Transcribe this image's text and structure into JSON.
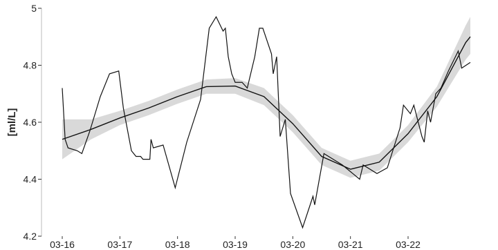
{
  "chart_data": {
    "type": "line",
    "y_label": "[ml/L]",
    "xlim": [
      15.64,
      23.32
    ],
    "ylim": [
      4.2,
      5.0
    ],
    "yticks": [
      {
        "value": 4.2,
        "label": "4.2"
      },
      {
        "value": 4.4,
        "label": "4.4"
      },
      {
        "value": 4.6,
        "label": "4.6"
      },
      {
        "value": 4.8,
        "label": "4.8"
      },
      {
        "value": 5,
        "label": "5"
      }
    ],
    "xticks": [
      {
        "value": 16,
        "label": "03-16"
      },
      {
        "value": 17,
        "label": "03-17"
      },
      {
        "value": 18,
        "label": "03-18"
      },
      {
        "value": 19,
        "label": "03-19"
      },
      {
        "value": 20,
        "label": "03-20"
      },
      {
        "value": 21,
        "label": "03-21"
      },
      {
        "value": 22,
        "label": "03-22"
      }
    ],
    "grid": false,
    "color": "#111111",
    "band_color": "#d9d9d9",
    "x": [
      16.0,
      16.05,
      16.1,
      16.26,
      16.34,
      16.48,
      16.66,
      16.82,
      16.98,
      17.06,
      17.2,
      17.28,
      17.36,
      17.4,
      17.48,
      17.52,
      17.54,
      17.58,
      17.75,
      17.96,
      18.16,
      18.4,
      18.55,
      18.67,
      18.79,
      18.83,
      18.88,
      18.94,
      19.0,
      19.12,
      19.21,
      19.34,
      19.42,
      19.48,
      19.63,
      19.66,
      19.72,
      19.78,
      19.87,
      19.96,
      20.17,
      20.35,
      20.38,
      20.54,
      20.86,
      21.16,
      21.22,
      21.46,
      21.64,
      21.86,
      21.92,
      22.04,
      22.1,
      22.24,
      22.28,
      22.34,
      22.39,
      22.48,
      22.57,
      22.7,
      22.87,
      22.93,
      23.08
    ],
    "values": [
      4.72,
      4.54,
      4.51,
      4.5,
      4.49,
      4.57,
      4.69,
      4.77,
      4.78,
      4.65,
      4.5,
      4.48,
      4.48,
      4.47,
      4.47,
      4.47,
      4.54,
      4.51,
      4.52,
      4.37,
      4.53,
      4.68,
      4.93,
      4.97,
      4.92,
      4.93,
      4.83,
      4.77,
      4.74,
      4.74,
      4.72,
      4.83,
      4.93,
      4.93,
      4.84,
      4.77,
      4.83,
      4.55,
      4.61,
      4.35,
      4.23,
      4.34,
      4.31,
      4.49,
      4.45,
      4.4,
      4.45,
      4.42,
      4.44,
      4.58,
      4.66,
      4.63,
      4.66,
      4.55,
      4.53,
      4.64,
      4.6,
      4.7,
      4.72,
      4.78,
      4.85,
      4.79,
      4.81
    ],
    "smooth_x": [
      16,
      16.5,
      17,
      17.5,
      18,
      18.5,
      19,
      19.5,
      20,
      20.5,
      21,
      21.5,
      22,
      22.5,
      23,
      23.08
    ],
    "smooth": [
      4.54,
      4.575,
      4.615,
      4.65,
      4.69,
      4.725,
      4.727,
      4.69,
      4.595,
      4.48,
      4.435,
      4.46,
      4.56,
      4.69,
      4.88,
      4.9
    ],
    "band_lower": [
      4.47,
      4.54,
      4.59,
      4.625,
      4.665,
      4.7,
      4.7,
      4.66,
      4.565,
      4.45,
      4.405,
      4.43,
      4.53,
      4.655,
      4.82,
      4.84
    ],
    "band_upper": [
      4.61,
      4.61,
      4.64,
      4.675,
      4.715,
      4.75,
      4.755,
      4.72,
      4.625,
      4.51,
      4.465,
      4.49,
      4.59,
      4.725,
      4.94,
      4.97
    ]
  }
}
